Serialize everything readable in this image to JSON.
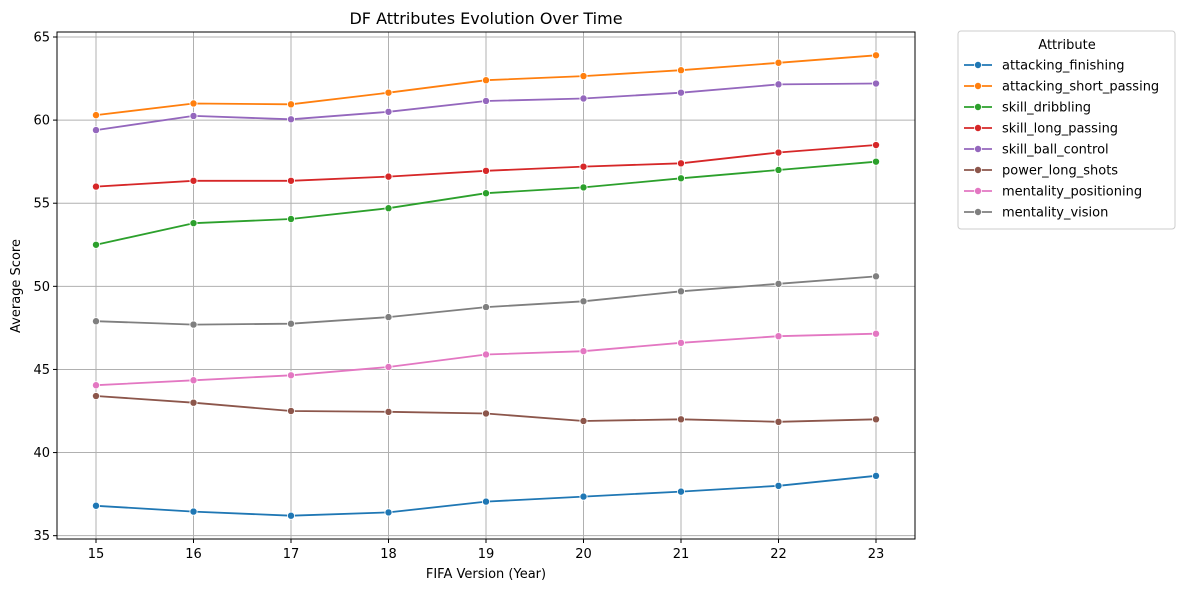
{
  "chart_data": {
    "type": "line",
    "title": "DF Attributes Evolution Over Time",
    "xlabel": "FIFA Version (Year)",
    "ylabel": "Average Score",
    "x": [
      15,
      16,
      17,
      18,
      19,
      20,
      21,
      22,
      23
    ],
    "xlim": [
      14.6,
      23.4
    ],
    "ylim": [
      34.8,
      65.3
    ],
    "yticks": [
      35,
      40,
      45,
      50,
      55,
      60,
      65
    ],
    "grid": true,
    "legend": {
      "title": "Attribute",
      "placement": "outside-upper-right"
    },
    "series": [
      {
        "name": "attacking_finishing",
        "color": "#1f77b4",
        "values": [
          36.8,
          36.45,
          36.2,
          36.4,
          37.05,
          37.35,
          37.65,
          38.0,
          38.6
        ]
      },
      {
        "name": "attacking_short_passing",
        "color": "#ff7f0e",
        "values": [
          60.3,
          61.0,
          60.95,
          61.65,
          62.4,
          62.65,
          63.0,
          63.45,
          63.9
        ]
      },
      {
        "name": "skill_dribbling",
        "color": "#2ca02c",
        "values": [
          52.5,
          53.8,
          54.05,
          54.7,
          55.6,
          55.95,
          56.5,
          57.0,
          57.5
        ]
      },
      {
        "name": "skill_long_passing",
        "color": "#d62728",
        "values": [
          56.0,
          56.35,
          56.35,
          56.6,
          56.95,
          57.2,
          57.4,
          58.05,
          58.5
        ]
      },
      {
        "name": "skill_ball_control",
        "color": "#9467bd",
        "values": [
          59.4,
          60.25,
          60.05,
          60.5,
          61.15,
          61.3,
          61.65,
          62.15,
          62.2
        ]
      },
      {
        "name": "power_long_shots",
        "color": "#8c564b",
        "values": [
          43.4,
          43.0,
          42.5,
          42.45,
          42.35,
          41.9,
          42.0,
          41.85,
          42.0
        ]
      },
      {
        "name": "mentality_positioning",
        "color": "#e377c2",
        "values": [
          44.05,
          44.35,
          44.65,
          45.15,
          45.9,
          46.1,
          46.6,
          47.0,
          47.15
        ]
      },
      {
        "name": "mentality_vision",
        "color": "#7f7f7f",
        "values": [
          47.9,
          47.7,
          47.75,
          48.15,
          48.75,
          49.1,
          49.7,
          50.15,
          50.6
        ]
      }
    ]
  }
}
